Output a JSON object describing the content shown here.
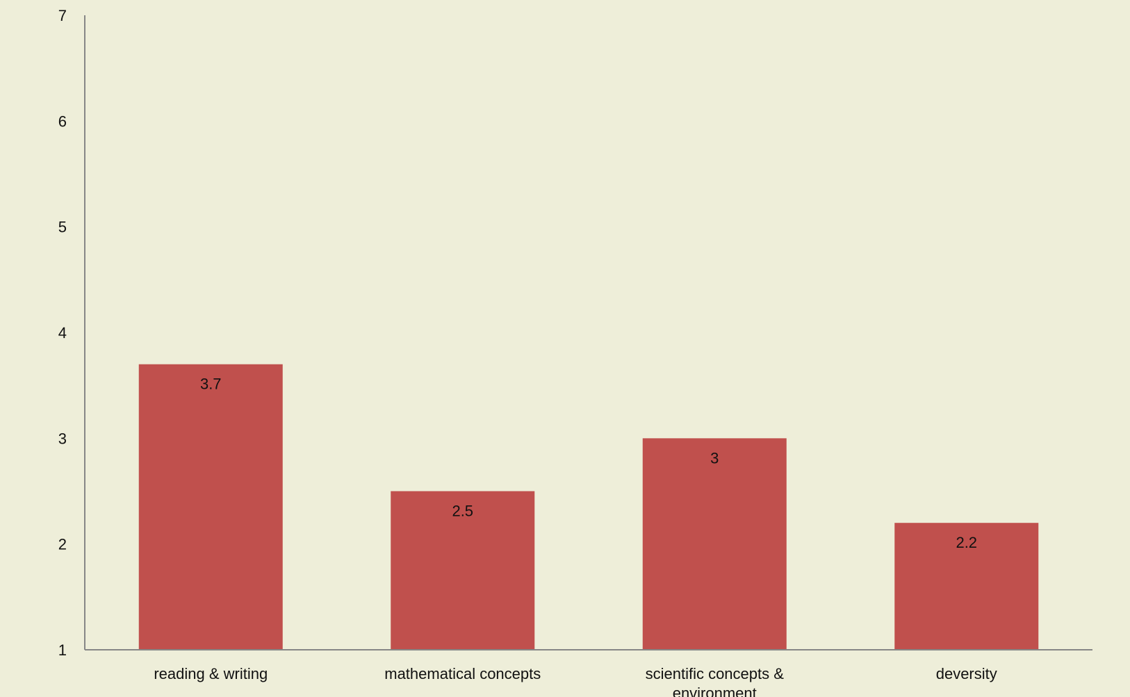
{
  "chart_data": {
    "type": "bar",
    "categories": [
      "reading & writing",
      "mathematical concepts",
      "scientific concepts & environment",
      "deversity"
    ],
    "category_lines": [
      [
        "reading & writing"
      ],
      [
        "mathematical concepts"
      ],
      [
        "scientific concepts &",
        "environment"
      ],
      [
        "deversity"
      ]
    ],
    "values": [
      3.7,
      2.5,
      3,
      2.2
    ],
    "value_labels": [
      "3.7",
      "2.5",
      "3",
      "2.2"
    ],
    "yticks": [
      "1",
      "2",
      "3",
      "4",
      "5",
      "6",
      "7"
    ],
    "ylim": [
      1,
      7
    ],
    "grid": false,
    "legend": "none",
    "colors": {
      "bar": "#c0504d",
      "axis": "#868686",
      "background": "#eeeed9",
      "text": "#111111"
    }
  }
}
